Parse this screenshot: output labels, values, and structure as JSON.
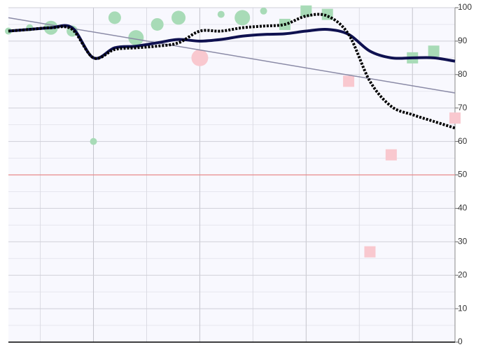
{
  "chart_data": {
    "type": "combo",
    "xlim": [
      0,
      21
    ],
    "ylim": [
      0,
      100
    ],
    "yticks": [
      0,
      10,
      20,
      30,
      40,
      50,
      60,
      70,
      80,
      90,
      100
    ],
    "y_minor_ticks": [
      5,
      15,
      25,
      35,
      45,
      55,
      65,
      75,
      85,
      95
    ],
    "xticks": [
      1.5,
      4,
      6.5,
      9,
      11.5,
      14,
      16.5,
      19
    ],
    "grid": true,
    "reference_line": {
      "value": 50,
      "color": "#e88a8a"
    },
    "series": [
      {
        "type": "smooth-line",
        "color": "#0f1150",
        "dash": false,
        "x": [
          0,
          1,
          2,
          3,
          4,
          5,
          6,
          7,
          8,
          9,
          10,
          11,
          12,
          13,
          14,
          15,
          16,
          17,
          18,
          19,
          20,
          21
        ],
        "values": [
          93,
          93.5,
          94,
          94,
          85,
          88,
          88.5,
          89.5,
          90.5,
          90,
          90.5,
          91.5,
          92,
          92.2,
          93,
          93.5,
          92,
          87,
          85,
          85,
          85,
          84
        ]
      },
      {
        "type": "smooth-line",
        "color": "#000000",
        "dash": true,
        "x": [
          0,
          1,
          2,
          3,
          4,
          5,
          6,
          7,
          8,
          9,
          10,
          11,
          12,
          13,
          14,
          15,
          16,
          17,
          18,
          19,
          20,
          21
        ],
        "values": [
          93,
          93.5,
          94,
          93.5,
          85,
          87.5,
          88,
          88.5,
          89.5,
          93,
          93,
          94,
          94.5,
          95,
          97.5,
          97.5,
          92,
          78,
          70.5,
          68,
          66,
          64
        ]
      },
      {
        "type": "line",
        "color": "#8a8aa6",
        "dash": false,
        "x": [
          0,
          21
        ],
        "values": [
          97,
          74.5
        ]
      },
      {
        "type": "bubble",
        "color": "#a8dbb7",
        "x": [
          0,
          1,
          2,
          3,
          4,
          5,
          6,
          7,
          8,
          10,
          11,
          12
        ],
        "values": [
          93,
          94,
          94,
          93,
          60,
          97,
          91,
          95,
          97,
          98,
          97,
          99
        ],
        "sizes": [
          5,
          5,
          10,
          8,
          5,
          9,
          11,
          9,
          10,
          5,
          11,
          5
        ]
      },
      {
        "type": "bubble",
        "color": "#f9c8cf",
        "x": [
          9
        ],
        "values": [
          85
        ],
        "sizes": [
          12
        ]
      },
      {
        "type": "square",
        "color": "#a8dbb7",
        "x": [
          13,
          14,
          15,
          19,
          20
        ],
        "values": [
          95,
          99,
          98,
          85,
          87
        ]
      },
      {
        "type": "square",
        "color": "#f9c8cf",
        "x": [
          16,
          17,
          18,
          21
        ],
        "values": [
          78,
          27,
          56,
          67
        ]
      }
    ]
  }
}
